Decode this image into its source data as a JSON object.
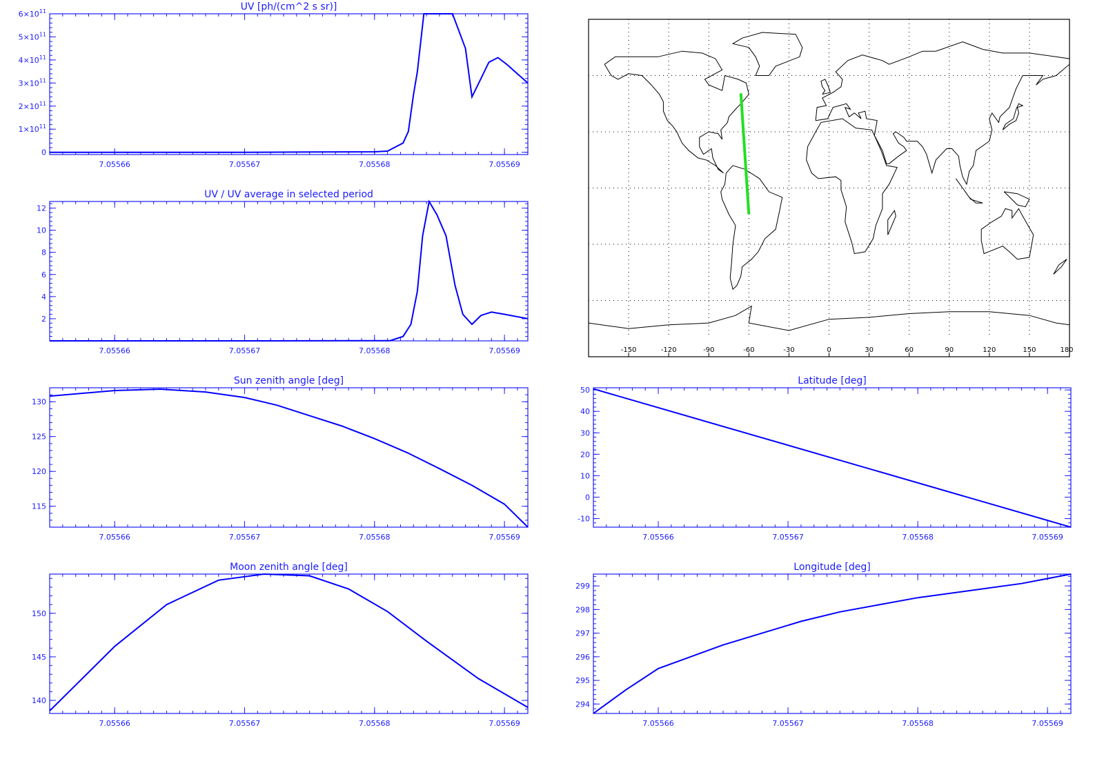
{
  "colors": {
    "axis": "#1a1aff",
    "series": "#0000ff",
    "track": "#22e022",
    "map": "#000000"
  },
  "x_tick_labels": [
    "7.05566",
    "7.05567",
    "7.05568",
    "7.05569"
  ],
  "chart_data": [
    {
      "type": "line",
      "title": "UV [ph/(cm^2 s sr)]",
      "xlim": [
        7.055655,
        7.0556918
      ],
      "ylim": [
        -10000000000.0,
        600000000000.0
      ],
      "y_ticks": [
        {
          "v": 0,
          "mant": "0",
          "exp": ""
        },
        {
          "v": 100000000000.0,
          "mant": "1×10",
          "exp": "11"
        },
        {
          "v": 200000000000.0,
          "mant": "2×10",
          "exp": "11"
        },
        {
          "v": 300000000000.0,
          "mant": "3×10",
          "exp": "11"
        },
        {
          "v": 400000000000.0,
          "mant": "4×10",
          "exp": "11"
        },
        {
          "v": 500000000000.0,
          "mant": "5×10",
          "exp": "11"
        },
        {
          "v": 600000000000.0,
          "mant": "6×10",
          "exp": "11"
        }
      ],
      "x": [
        7.055655,
        7.05567,
        7.05567532,
        7.05568,
        7.055681,
        7.0556822,
        7.0556826,
        7.055683,
        7.0556833,
        7.0556838,
        7.0556845,
        7.0556852,
        7.055686,
        7.055687,
        7.0556875,
        7.0556882,
        7.0556888,
        7.0556895,
        7.0556902,
        7.055691,
        7.0556918
      ],
      "y": [
        0,
        0,
        1000000000.0,
        2000000000.0,
        5000000000.0,
        40000000000.0,
        90000000000.0,
        250000000000.0,
        350000000000.0,
        600000000000.0,
        600000000000.0,
        600000000000.0,
        600000000000.0,
        450000000000.0,
        240000000000.0,
        320000000000.0,
        390000000000.0,
        410000000000.0,
        380000000000.0,
        340000000000.0,
        300000000000.0
      ]
    },
    {
      "type": "line",
      "title": "UV / UV average in selected period",
      "xlim": [
        7.055655,
        7.0556918
      ],
      "ylim": [
        0,
        12.6
      ],
      "y_ticks": [
        {
          "v": 2,
          "mant": "2",
          "exp": ""
        },
        {
          "v": 4,
          "mant": "4",
          "exp": ""
        },
        {
          "v": 6,
          "mant": "6",
          "exp": ""
        },
        {
          "v": 8,
          "mant": "8",
          "exp": ""
        },
        {
          "v": 10,
          "mant": "10",
          "exp": ""
        },
        {
          "v": 12,
          "mant": "12",
          "exp": ""
        }
      ],
      "x": [
        7.055655,
        7.05567,
        7.0556812,
        7.0556822,
        7.0556828,
        7.0556833,
        7.0556837,
        7.0556842,
        7.0556848,
        7.0556855,
        7.0556862,
        7.0556868,
        7.0556875,
        7.0556882,
        7.055689,
        7.05569,
        7.0556918
      ],
      "y": [
        0,
        0,
        0.02,
        0.4,
        1.5,
        4.5,
        9.5,
        12.6,
        11.4,
        9.5,
        5.0,
        2.4,
        1.5,
        2.3,
        2.6,
        2.4,
        2.0
      ]
    },
    {
      "type": "line",
      "title": "Sun zenith angle [deg]",
      "xlim": [
        7.055655,
        7.0556918
      ],
      "ylim": [
        112,
        132
      ],
      "y_ticks": [
        {
          "v": 115,
          "mant": "115",
          "exp": ""
        },
        {
          "v": 120,
          "mant": "120",
          "exp": ""
        },
        {
          "v": 125,
          "mant": "125",
          "exp": ""
        },
        {
          "v": 130,
          "mant": "130",
          "exp": ""
        }
      ],
      "x": [
        7.055655,
        7.05566,
        7.0556635,
        7.055667,
        7.05567,
        7.0556725,
        7.055675,
        7.0556775,
        7.05568,
        7.0556825,
        7.055685,
        7.0556875,
        7.05569,
        7.0556918
      ],
      "y": [
        130.8,
        131.6,
        131.8,
        131.4,
        130.6,
        129.5,
        128.0,
        126.5,
        124.7,
        122.7,
        120.4,
        118.0,
        115.3,
        112.0
      ]
    },
    {
      "type": "line",
      "title": "Latitude [deg]",
      "xlim": [
        7.055655,
        7.0556918
      ],
      "ylim": [
        -14,
        51
      ],
      "y_ticks": [
        {
          "v": -10,
          "mant": "-10",
          "exp": ""
        },
        {
          "v": 0,
          "mant": "0",
          "exp": ""
        },
        {
          "v": 10,
          "mant": "10",
          "exp": ""
        },
        {
          "v": 20,
          "mant": "20",
          "exp": ""
        },
        {
          "v": 30,
          "mant": "30",
          "exp": ""
        },
        {
          "v": 40,
          "mant": "40",
          "exp": ""
        },
        {
          "v": 50,
          "mant": "50",
          "exp": ""
        }
      ],
      "x": [
        7.055655,
        7.0556918
      ],
      "y": [
        50.5,
        -14.0
      ]
    },
    {
      "type": "line",
      "title": "Moon zenith angle [deg]",
      "xlim": [
        7.055655,
        7.0556918
      ],
      "ylim": [
        138.5,
        154.5
      ],
      "y_ticks": [
        {
          "v": 140,
          "mant": "140",
          "exp": ""
        },
        {
          "v": 145,
          "mant": "145",
          "exp": ""
        },
        {
          "v": 150,
          "mant": "150",
          "exp": ""
        }
      ],
      "x": [
        7.055655,
        7.05566,
        7.055664,
        7.055668,
        7.0556715,
        7.055675,
        7.055678,
        7.055681,
        7.055684,
        7.055688,
        7.0556918
      ],
      "y": [
        138.8,
        146.2,
        151.0,
        153.8,
        154.5,
        154.3,
        152.8,
        150.2,
        146.8,
        142.5,
        139.2
      ]
    },
    {
      "type": "line",
      "title": "Longitude [deg]",
      "xlim": [
        7.055655,
        7.0556918
      ],
      "ylim": [
        293.6,
        299.5
      ],
      "y_ticks": [
        {
          "v": 294,
          "mant": "294",
          "exp": ""
        },
        {
          "v": 295,
          "mant": "295",
          "exp": ""
        },
        {
          "v": 296,
          "mant": "296",
          "exp": ""
        },
        {
          "v": 297,
          "mant": "297",
          "exp": ""
        },
        {
          "v": 298,
          "mant": "298",
          "exp": ""
        },
        {
          "v": 299,
          "mant": "299",
          "exp": ""
        }
      ],
      "x": [
        7.055655,
        7.0556575,
        7.05566,
        7.0556625,
        7.055665,
        7.055668,
        7.055671,
        7.055674,
        7.055677,
        7.05568,
        7.055684,
        7.055688,
        7.0556918
      ],
      "y": [
        293.6,
        294.6,
        295.5,
        296.0,
        296.5,
        297.0,
        297.5,
        297.9,
        298.2,
        298.5,
        298.8,
        299.1,
        299.5
      ]
    }
  ],
  "map": {
    "lon_ticks": [
      "-150",
      "-120",
      "-90",
      "-60",
      "-30",
      "0",
      "30",
      "60",
      "90",
      "120",
      "150",
      "180"
    ],
    "track": {
      "lon": [
        -66,
        -60
      ],
      "lat": [
        50.5,
        -14
      ]
    }
  }
}
